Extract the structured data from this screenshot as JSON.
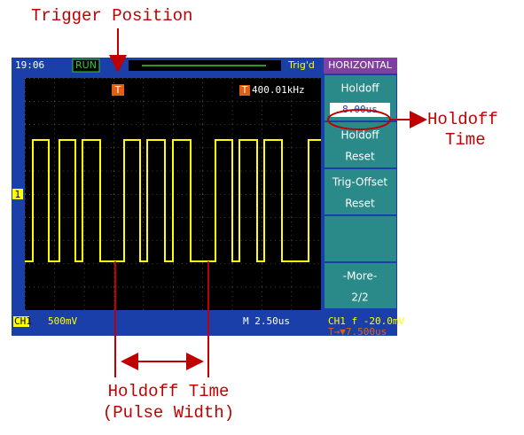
{
  "annotations": {
    "trigger_position": "Trigger Position",
    "holdoff_time_right": [
      "Holdoff",
      "Time"
    ],
    "holdoff_time_bottom": [
      "Holdoff Time",
      "(Pulse Width)"
    ]
  },
  "screen": {
    "clock": "19:06",
    "run_state": "RUN",
    "trig_state": "Trig'd",
    "trigger_marker": "T",
    "ch1_marker": "1",
    "frequency_icon": "T",
    "frequency": "400.01kHz",
    "menu": {
      "title": "HORIZONTAL",
      "items": [
        [
          "Holdoff",
          "8.00us"
        ],
        [
          "Holdoff",
          "Reset"
        ],
        [
          "Trig-Offset",
          "Reset"
        ],
        [],
        [
          "-More-",
          "2/2"
        ]
      ]
    },
    "footer": {
      "channel": "CH1",
      "volts_div": "500mV",
      "time_base": "M 2.50us",
      "trigger_level": "CH1 f -20.0mV",
      "trigger_offset": "T→▼7.500us"
    }
  }
}
